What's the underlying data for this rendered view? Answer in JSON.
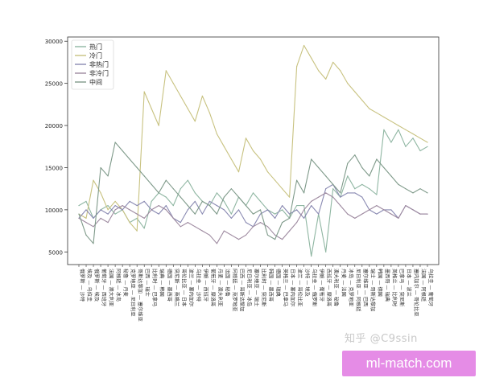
{
  "chart_data": {
    "type": "line",
    "title": "",
    "xlabel": "",
    "ylabel": "",
    "ylim": [
      3500,
      30500
    ],
    "yticks": [
      5000,
      10000,
      15000,
      20000,
      25000,
      30000
    ],
    "grid": false,
    "legend_position": "top-left",
    "categories": [
      "俄罗斯 — 沙特",
      "埃及 — 乌拉圭",
      "俄罗斯 — 埃及",
      "葡萄牙 — 西班牙",
      "法国 — 澳大利亚",
      "阿根廷 — 冰岛",
      "秘鲁 — 丹麦",
      "克罗地亚 — 尼日利亚",
      "哥斯达黎加 — 塞尔维亚",
      "巴西 — 瑞士",
      "比利时 — 巴拿马",
      "瑞典 — 韩国",
      "德国 — 墨西哥",
      "突尼斯 — 英格兰",
      "哥伦比亚 — 日本",
      "波兰 — 塞内加尔",
      "乌拉圭 — 沙特",
      "伊朗 — 西班牙",
      "葡萄牙 — 摩洛哥",
      "丹麦 — 澳大利亚",
      "法国 — 秘鲁",
      "阿根廷 — 克罗地亚",
      "巴西 — 哥斯达黎加",
      "尼日利亚 — 冰岛",
      "塞尔维亚 — 瑞士",
      "比利时 — 突尼斯",
      "韩国 — 墨西哥",
      "德国 — 瑞典",
      "英格兰 — 巴拿马",
      "日本 — 塞内加尔",
      "波兰 — 哥伦比亚",
      "沙特 — 埃及",
      "乌拉圭 — 俄罗斯",
      "伊朗 — 葡萄牙",
      "西班牙 — 摩洛哥",
      "澳大利亚 — 秘鲁",
      "丹麦 — 法国",
      "冰岛 — 克罗地亚",
      "尼日利亚 — 阿根廷",
      "塞尔维亚 — 巴西",
      "瑞士 — 哥斯达黎加",
      "韩国 — 德国",
      "墨西哥 — 瑞典",
      "英格兰 — 比利时",
      "巴拿马 — 突尼斯",
      "日本 — 波兰",
      "塞内加尔 — 哥伦比亚",
      "法国 — 阿根廷",
      "乌拉圭 — 葡萄牙"
    ],
    "series": [
      {
        "name": "热门",
        "color": "#8fb6a2",
        "values": [
          10500,
          11000,
          9000,
          10000,
          10500,
          9500,
          10000,
          8500,
          9000,
          7800,
          11000,
          12000,
          11500,
          10500,
          12500,
          13500,
          12000,
          11000,
          10500,
          12000,
          11000,
          9500,
          11500,
          10500,
          12000,
          11000,
          10000,
          9500,
          10000,
          9000,
          10500,
          10500,
          4500,
          9500,
          5000,
          12500,
          11500,
          14000,
          12500,
          13000,
          12500,
          11800,
          19500,
          18000,
          19500,
          17500,
          18500,
          17000,
          17500
        ]
      },
      {
        "name": "冷门",
        "color": "#c8c280",
        "values": [
          9500,
          9000,
          13500,
          12000,
          10000,
          11000,
          10000,
          8500,
          7500,
          24000,
          22000,
          20000,
          26500,
          25000,
          23500,
          22000,
          20500,
          23500,
          21500,
          19000,
          17500,
          16000,
          14500,
          18500,
          17000,
          16000,
          14500,
          13500,
          12500,
          11500,
          27000,
          29500,
          28000,
          26500,
          25500,
          27500,
          26500,
          25000,
          24000,
          23000,
          22000,
          21500,
          21000,
          20500,
          20000,
          19500,
          19000,
          18500,
          18000
        ]
      },
      {
        "name": "非热门",
        "color": "#8a8ab2",
        "values": [
          9000,
          10000,
          9000,
          10000,
          9500,
          10500,
          10000,
          11000,
          10500,
          11000,
          10000,
          9500,
          10500,
          9000,
          8500,
          10000,
          11000,
          9500,
          11000,
          10500,
          10000,
          9000,
          10000,
          8500,
          8000,
          9500,
          10000,
          9000,
          10500,
          9500,
          10000,
          9000,
          10500,
          9500,
          12500,
          13000,
          11500,
          12000,
          12000,
          11500,
          10000,
          9500,
          10000,
          10000,
          9000,
          10500,
          10000,
          9500,
          9500
        ]
      },
      {
        "name": "非冷门",
        "color": "#9e8aa0",
        "values": [
          9000,
          8500,
          8000,
          9000,
          8500,
          10000,
          10500,
          10000,
          9500,
          9000,
          10000,
          10500,
          10000,
          9000,
          8000,
          8500,
          8000,
          7500,
          7000,
          6000,
          7500,
          7000,
          6500,
          7000,
          8000,
          8500,
          8000,
          7000,
          6500,
          7500,
          8500,
          10000,
          11000,
          11500,
          12000,
          11500,
          10500,
          9500,
          9000,
          9500,
          10000,
          10500,
          10000,
          9500,
          9000,
          10500,
          10000,
          9500,
          9500
        ]
      },
      {
        "name": "中间",
        "color": "#7f9a8a",
        "values": [
          9500,
          7000,
          6000,
          15000,
          14000,
          18000,
          17000,
          16000,
          15000,
          14000,
          13000,
          12000,
          13500,
          12500,
          11500,
          10500,
          9500,
          11000,
          10500,
          9500,
          11500,
          12500,
          11500,
          10500,
          9500,
          10000,
          7000,
          6500,
          8500,
          9000,
          13500,
          12000,
          16000,
          15000,
          14000,
          13000,
          12000,
          15500,
          16500,
          15000,
          14000,
          16000,
          15000,
          14000,
          13000,
          12500,
          12000,
          12500,
          12000
        ]
      }
    ]
  },
  "watermark_text": "知乎 @C9ssin",
  "banner_text": "ml-match.com"
}
